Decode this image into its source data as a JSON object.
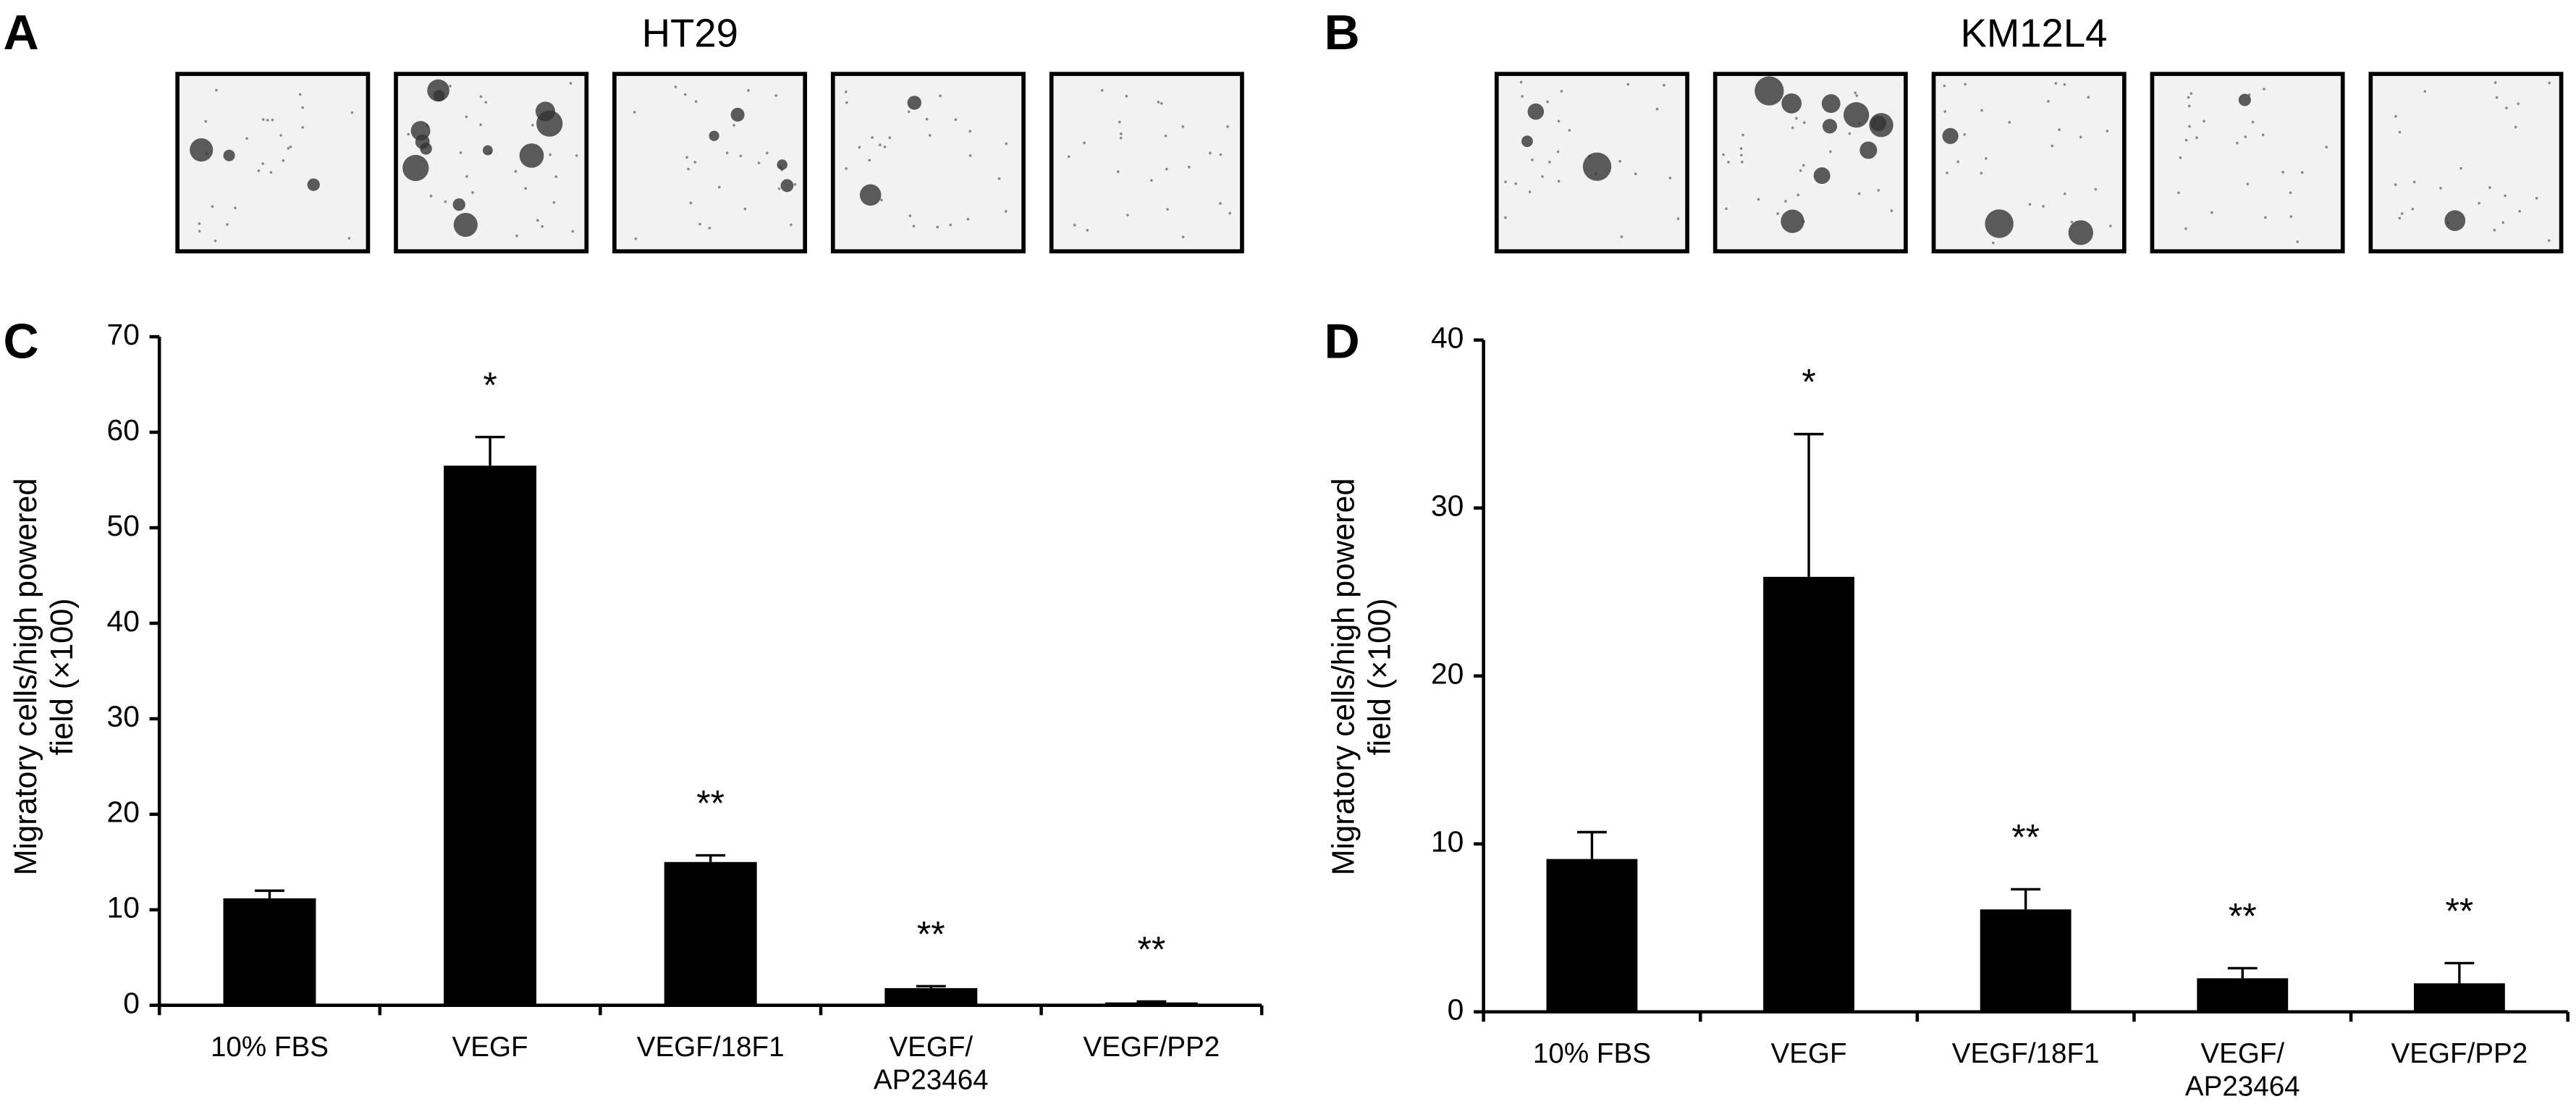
{
  "micrographs": [
    {
      "panel_label": "A",
      "title": "HT29"
    },
    {
      "panel_label": "B",
      "title": "KM12L4"
    }
  ],
  "chart_data": [
    {
      "type": "bar",
      "panel_label": "C",
      "y_label": "Migratory cells/high powered\nfield (×100)",
      "categories": [
        "10% FBS",
        "VEGF",
        "VEGF/18F1",
        "VEGF/\nAP23464",
        "VEGF/PP2"
      ],
      "values": [
        11.2,
        56.5,
        15,
        1.8,
        0.3
      ],
      "errors": [
        0.8,
        3,
        0.7,
        0.2,
        0.1
      ],
      "markers": [
        null,
        "*",
        "**",
        "**",
        "**"
      ],
      "color": "#000000",
      "ylim": [
        0,
        70
      ],
      "yticks": [
        0,
        10,
        20,
        30,
        40,
        50,
        60,
        70
      ]
    },
    {
      "type": "bar",
      "panel_label": "D",
      "y_label": "Migratory cells/high powered\nfield (×100)",
      "categories": [
        "10% FBS",
        "VEGF",
        "VEGF/18F1",
        "VEGF/\nAP23464",
        "VEGF/PP2"
      ],
      "values": [
        9.1,
        25.9,
        6.1,
        2.0,
        1.7
      ],
      "errors": [
        1.6,
        8.5,
        1.2,
        0.6,
        1.2
      ],
      "markers": [
        null,
        "*",
        "**",
        "**",
        "**"
      ],
      "color": "#000000",
      "ylim": [
        0,
        40
      ],
      "yticks": [
        0,
        10,
        20,
        30,
        40
      ]
    }
  ]
}
